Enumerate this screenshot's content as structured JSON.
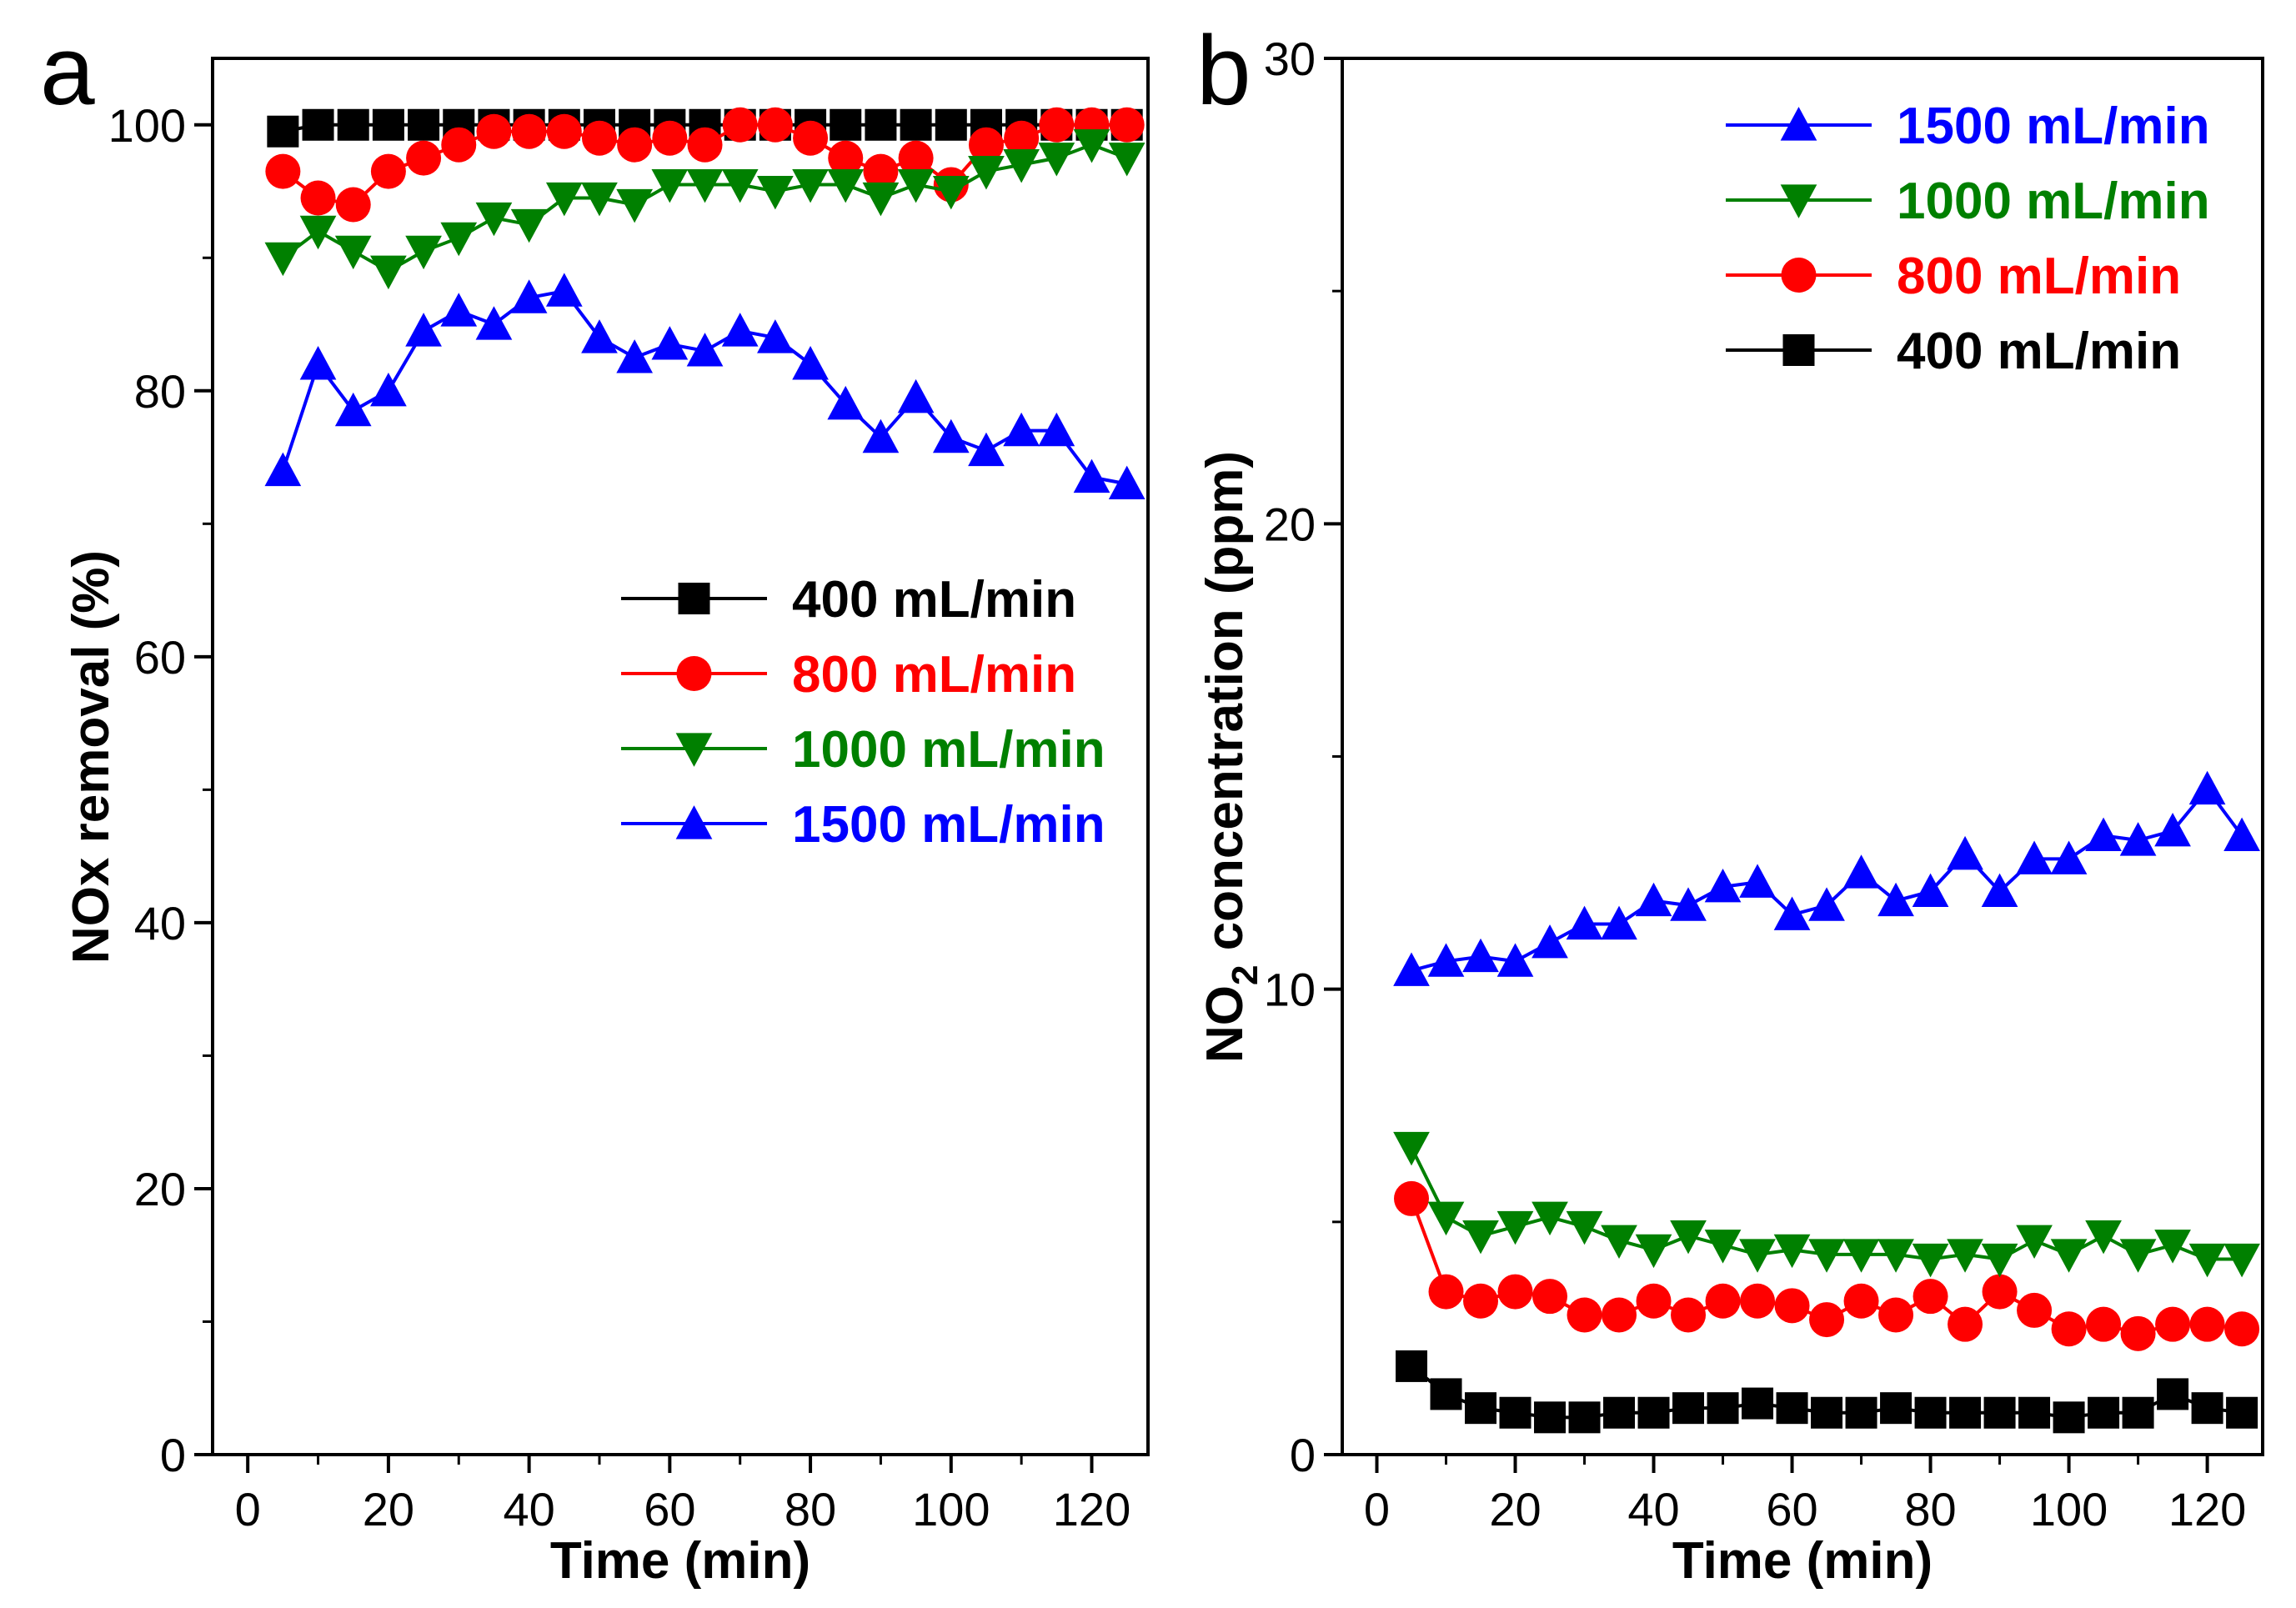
{
  "chart_data": [
    {
      "panel_label": "a",
      "type": "line",
      "xlabel": "Time (min)",
      "ylabel": "NOx removal (%)",
      "xlim": [
        -5,
        128
      ],
      "ylim": [
        0,
        105
      ],
      "xticks": [
        0,
        20,
        40,
        60,
        80,
        100,
        120
      ],
      "yticks": [
        0,
        20,
        40,
        60,
        80,
        100
      ],
      "legend_position": "center-right",
      "legend_order": [
        0,
        1,
        2,
        3
      ],
      "series": [
        {
          "name": "400 mL/min",
          "color": "#000000",
          "marker": "square",
          "x": [
            5,
            10,
            15,
            20,
            25,
            30,
            35,
            40,
            45,
            50,
            55,
            60,
            65,
            70,
            75,
            80,
            85,
            90,
            95,
            100,
            105,
            110,
            115,
            120,
            125
          ],
          "values": [
            99.5,
            100,
            100,
            100,
            100,
            100,
            100,
            100,
            100,
            100,
            100,
            100,
            100,
            100,
            100,
            100,
            100,
            100,
            100,
            100,
            100,
            100,
            100,
            100,
            100
          ]
        },
        {
          "name": "800 mL/min",
          "color": "#ff0000",
          "marker": "circle",
          "x": [
            5,
            10,
            15,
            20,
            25,
            30,
            35,
            40,
            45,
            50,
            55,
            60,
            65,
            70,
            75,
            80,
            85,
            90,
            95,
            100,
            105,
            110,
            115,
            120,
            125
          ],
          "values": [
            96.5,
            94.5,
            94,
            96.5,
            97.5,
            98.5,
            99.5,
            99.5,
            99.5,
            99,
            98.5,
            99,
            98.5,
            100,
            100,
            99,
            97.5,
            96.5,
            97.5,
            95.5,
            98.5,
            99,
            100,
            100,
            100
          ]
        },
        {
          "name": "1000 mL/min",
          "color": "#008000",
          "marker": "triangle-down",
          "x": [
            5,
            10,
            15,
            20,
            25,
            30,
            35,
            40,
            45,
            50,
            55,
            60,
            65,
            70,
            75,
            80,
            85,
            90,
            95,
            100,
            105,
            110,
            115,
            120,
            125
          ],
          "values": [
            90,
            92,
            90.5,
            89,
            90.5,
            91.5,
            93,
            92.5,
            94.5,
            94.5,
            94,
            95.5,
            95.5,
            95.5,
            95,
            95.5,
            95.5,
            94.5,
            95.5,
            95,
            96.5,
            97,
            97.5,
            98.5,
            97.5
          ]
        },
        {
          "name": "1500 mL/min",
          "color": "#0000ff",
          "marker": "triangle-up",
          "x": [
            5,
            10,
            15,
            20,
            25,
            30,
            35,
            40,
            45,
            50,
            55,
            60,
            65,
            70,
            75,
            80,
            85,
            90,
            95,
            100,
            105,
            110,
            115,
            120,
            125
          ],
          "values": [
            74,
            82,
            78.5,
            80,
            84.5,
            86,
            85,
            87,
            87.5,
            84,
            82.5,
            83.5,
            83,
            84.5,
            84,
            82,
            79,
            76.5,
            79.5,
            76.5,
            75.5,
            77,
            77,
            73.5,
            73
          ]
        }
      ]
    },
    {
      "panel_label": "b",
      "type": "line",
      "xlabel": "Time (min)",
      "ylabel_main": "NO",
      "ylabel_subscript": "2",
      "ylabel_rest": " concentration (ppm)",
      "xlim": [
        -5,
        128
      ],
      "ylim": [
        0,
        30
      ],
      "xticks": [
        0,
        20,
        40,
        60,
        80,
        100,
        120
      ],
      "yticks": [
        0,
        10,
        20,
        30
      ],
      "legend_position": "top-right",
      "legend_order": [
        3,
        2,
        1,
        0
      ],
      "series": [
        {
          "name": "400 mL/min",
          "color": "#000000",
          "marker": "square",
          "x": [
            5,
            10,
            15,
            20,
            25,
            30,
            35,
            40,
            45,
            50,
            55,
            60,
            65,
            70,
            75,
            80,
            85,
            90,
            95,
            100,
            105,
            110,
            115,
            120,
            125
          ],
          "values": [
            1.9,
            1.3,
            1.0,
            0.9,
            0.8,
            0.8,
            0.9,
            0.9,
            1.0,
            1.0,
            1.1,
            1.0,
            0.9,
            0.9,
            1.0,
            0.9,
            0.9,
            0.9,
            0.9,
            0.8,
            0.9,
            0.9,
            1.3,
            1.0,
            0.9
          ]
        },
        {
          "name": "800 mL/min",
          "color": "#ff0000",
          "marker": "circle",
          "x": [
            5,
            10,
            15,
            20,
            25,
            30,
            35,
            40,
            45,
            50,
            55,
            60,
            65,
            70,
            75,
            80,
            85,
            90,
            95,
            100,
            105,
            110,
            115,
            120,
            125
          ],
          "values": [
            5.5,
            3.5,
            3.3,
            3.5,
            3.4,
            3.0,
            3.0,
            3.3,
            3.0,
            3.3,
            3.3,
            3.2,
            2.9,
            3.3,
            3.0,
            3.4,
            2.8,
            3.5,
            3.1,
            2.7,
            2.8,
            2.6,
            2.8,
            2.8,
            2.7
          ]
        },
        {
          "name": "1000 mL/min",
          "color": "#008000",
          "marker": "triangle-down",
          "x": [
            5,
            10,
            15,
            20,
            25,
            30,
            35,
            40,
            45,
            50,
            55,
            60,
            65,
            70,
            75,
            80,
            85,
            90,
            95,
            100,
            105,
            110,
            115,
            120,
            125
          ],
          "values": [
            6.6,
            5.1,
            4.7,
            4.9,
            5.1,
            4.9,
            4.6,
            4.4,
            4.7,
            4.5,
            4.3,
            4.4,
            4.3,
            4.3,
            4.3,
            4.2,
            4.3,
            4.2,
            4.6,
            4.3,
            4.7,
            4.3,
            4.5,
            4.2,
            4.2
          ]
        },
        {
          "name": "1500 mL/min",
          "color": "#0000ff",
          "marker": "triangle-up",
          "x": [
            5,
            10,
            15,
            20,
            25,
            30,
            35,
            40,
            45,
            50,
            55,
            60,
            65,
            70,
            75,
            80,
            85,
            90,
            95,
            100,
            105,
            110,
            115,
            120,
            125
          ],
          "values": [
            10.4,
            10.6,
            10.7,
            10.6,
            11.0,
            11.4,
            11.4,
            11.9,
            11.8,
            12.2,
            12.3,
            11.6,
            11.8,
            12.5,
            11.9,
            12.1,
            12.9,
            12.1,
            12.8,
            12.8,
            13.3,
            13.2,
            13.4,
            14.3,
            13.3
          ]
        }
      ]
    }
  ]
}
